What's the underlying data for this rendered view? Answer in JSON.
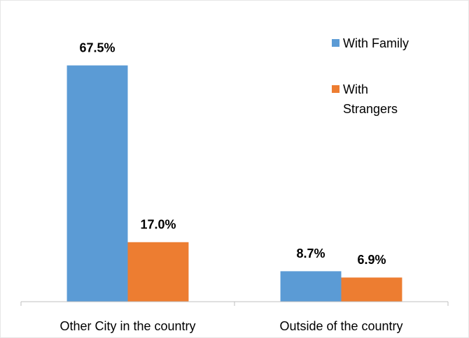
{
  "chart_data": {
    "type": "bar",
    "categories": [
      "Other City in the country",
      "Outside of the country"
    ],
    "series": [
      {
        "name": "With Family",
        "color": "#5b9bd5",
        "values": [
          67.5,
          8.7
        ],
        "value_labels": [
          "67.5%",
          "8.7%"
        ]
      },
      {
        "name": "With Strangers",
        "color": "#ed7d31",
        "values": [
          17.0,
          6.9
        ],
        "value_labels": [
          "17.0%",
          "6.9%"
        ]
      }
    ],
    "ylim": [
      0,
      80
    ],
    "legend": "top-right"
  }
}
